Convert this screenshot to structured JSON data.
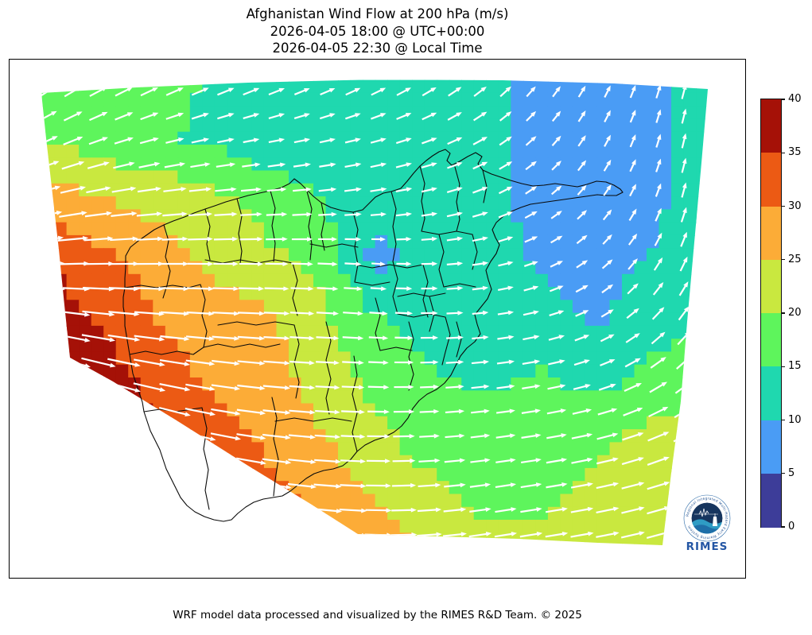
{
  "title": {
    "line1": "Afghanistan Wind Flow at 200 hPa (m/s)",
    "line2": "2026-04-05 18:00 @ UTC+00:00",
    "line3": "2026-04-05 22:30 @ Local Time"
  },
  "caption": "WRF model data processed and visualized by the RIMES R&D Team. © 2025",
  "logo": {
    "wordmark": "RIMES",
    "ring_text": "Regional Integrated Multi-Hazard Early Warning System"
  },
  "chart_data": {
    "type": "heatmap",
    "title": "Afghanistan Wind Flow at 200 hPa (m/s)",
    "time_utc": "2026-04-05 18:00 @ UTC+00:00",
    "time_local": "2026-04-05 22:30 @ Local Time",
    "units": "m/s",
    "legend_position": "right",
    "colorbar": {
      "min": 0,
      "max": 40,
      "ticks": [
        0,
        5,
        10,
        15,
        20,
        25,
        30,
        35,
        40
      ],
      "bin_edges": [
        0,
        5,
        10,
        15,
        20,
        25,
        30,
        35,
        40
      ],
      "colors": [
        "#3d3d99",
        "#4a9cf5",
        "#1fd8af",
        "#5ef55c",
        "#c9e83f",
        "#fcac37",
        "#ec5a14",
        "#a51107"
      ]
    },
    "arrow_color": "#ffffff",
    "boundary_color": "#0a0a0a",
    "wind_speed_grid_ms": [
      [
        16,
        17,
        16,
        15,
        14,
        12,
        12,
        12,
        11,
        8,
        8,
        9,
        13
      ],
      [
        20,
        17,
        16,
        14,
        12,
        12,
        12,
        12,
        12,
        8,
        8,
        9,
        12
      ],
      [
        27,
        25,
        23,
        21,
        18,
        15,
        13,
        12,
        12,
        8,
        8,
        9,
        13
      ],
      [
        36,
        31,
        28,
        24,
        21,
        18,
        8,
        12,
        12,
        9,
        8,
        10,
        13
      ],
      [
        38,
        34,
        30,
        27,
        26,
        21,
        15,
        13,
        12,
        12,
        9,
        13,
        13
      ],
      [
        40,
        38,
        33,
        29,
        27,
        23,
        18,
        15,
        14,
        15,
        12,
        16,
        18
      ],
      [
        40,
        39,
        36,
        32,
        29,
        25,
        21,
        17,
        16,
        17,
        19,
        21,
        21
      ],
      [
        40,
        40,
        38,
        35,
        31,
        28,
        24,
        21,
        18,
        19,
        21,
        22,
        22
      ],
      [
        40,
        40,
        39,
        37,
        34,
        31,
        28,
        24,
        21,
        21,
        22,
        23,
        23
      ]
    ],
    "wind_direction_deg_ccw_from_east": [
      [
        35,
        30,
        27,
        25,
        24,
        25,
        28,
        33,
        40,
        52,
        62,
        72,
        78
      ],
      [
        25,
        20,
        15,
        12,
        11,
        12,
        15,
        20,
        30,
        45,
        60,
        72,
        80
      ],
      [
        14,
        10,
        7,
        5,
        4,
        5,
        8,
        12,
        20,
        35,
        52,
        68,
        80
      ],
      [
        4,
        2,
        1,
        0,
        0,
        -2,
        -4,
        2,
        10,
        22,
        40,
        58,
        72
      ],
      [
        -8,
        -6,
        -4,
        -3,
        -2,
        -3,
        -4,
        0,
        6,
        14,
        28,
        45,
        60
      ],
      [
        -18,
        -15,
        -11,
        -8,
        -5,
        -3,
        -2,
        2,
        6,
        10,
        18,
        32,
        45
      ],
      [
        -28,
        -24,
        -18,
        -12,
        -7,
        -4,
        -1,
        3,
        7,
        9,
        13,
        22,
        32
      ],
      [
        -33,
        -31,
        -26,
        -17,
        -10,
        -5,
        -1,
        4,
        8,
        9,
        11,
        16,
        24
      ],
      [
        -36,
        -34,
        -30,
        -22,
        -13,
        -7,
        -2,
        4,
        9,
        9,
        10,
        14,
        20
      ]
    ]
  }
}
